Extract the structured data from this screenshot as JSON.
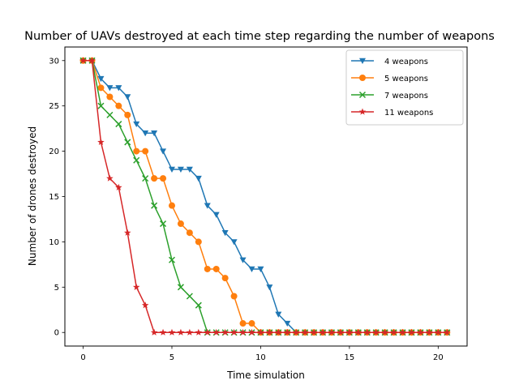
{
  "chart_data": {
    "type": "line",
    "title": "Number of UAVs destroyed at each time step regarding the number of weapons",
    "xlabel": "Time simulation",
    "ylabel": "Number of drones destroyed",
    "xlim": [
      -1.03,
      21.63
    ],
    "ylim": [
      -1.5,
      31.5
    ],
    "xticks": [
      0,
      5,
      10,
      15,
      20
    ],
    "yticks": [
      0,
      5,
      10,
      15,
      20,
      25,
      30
    ],
    "grid": false,
    "legend_position": "top-right",
    "x": [
      0,
      0.5,
      1,
      1.5,
      2,
      2.5,
      3,
      3.5,
      4,
      4.5,
      5,
      5.5,
      6,
      6.5,
      7,
      7.5,
      8,
      8.5,
      9,
      9.5,
      10,
      10.5,
      11,
      11.5,
      12,
      12.5,
      13,
      13.5,
      14,
      14.5,
      15,
      15.5,
      16,
      16.5,
      17,
      17.5,
      18,
      18.5,
      19,
      19.5,
      20,
      20.5
    ],
    "series": [
      {
        "name": "4 weapons",
        "color": "#1f77b4",
        "marker": "triangle-down",
        "values": [
          30,
          30,
          28,
          27,
          27,
          26,
          23,
          22,
          22,
          20,
          18,
          18,
          18,
          17,
          14,
          13,
          11,
          10,
          8,
          7,
          7,
          5,
          2,
          1,
          0,
          0,
          0,
          0,
          0,
          0,
          0,
          0,
          0,
          0,
          0,
          0,
          0,
          0,
          0,
          0,
          0,
          0
        ]
      },
      {
        "name": "5 weapons",
        "color": "#ff7f0e",
        "marker": "circle",
        "values": [
          30,
          30,
          27,
          26,
          25,
          24,
          20,
          20,
          17,
          17,
          14,
          12,
          11,
          10,
          7,
          7,
          6,
          4,
          1,
          1,
          0,
          0,
          0,
          0,
          0,
          0,
          0,
          0,
          0,
          0,
          0,
          0,
          0,
          0,
          0,
          0,
          0,
          0,
          0,
          0,
          0,
          0
        ]
      },
      {
        "name": "7 weapons",
        "color": "#2ca02c",
        "marker": "x",
        "values": [
          30,
          30,
          25,
          24,
          23,
          21,
          19,
          17,
          14,
          12,
          8,
          5,
          4,
          3,
          0,
          0,
          0,
          0,
          0,
          0,
          0,
          0,
          0,
          0,
          0,
          0,
          0,
          0,
          0,
          0,
          0,
          0,
          0,
          0,
          0,
          0,
          0,
          0,
          0,
          0,
          0,
          0
        ]
      },
      {
        "name": "11 weapons",
        "color": "#d62728",
        "marker": "star",
        "values": [
          30,
          30,
          21,
          17,
          16,
          11,
          5,
          3,
          0,
          0,
          0,
          0,
          0,
          0,
          0,
          0,
          0,
          0,
          0,
          0,
          0,
          0,
          0,
          0,
          0,
          0,
          0,
          0,
          0,
          0,
          0,
          0,
          0,
          0,
          0,
          0,
          0,
          0,
          0,
          0,
          0,
          0
        ]
      }
    ]
  }
}
